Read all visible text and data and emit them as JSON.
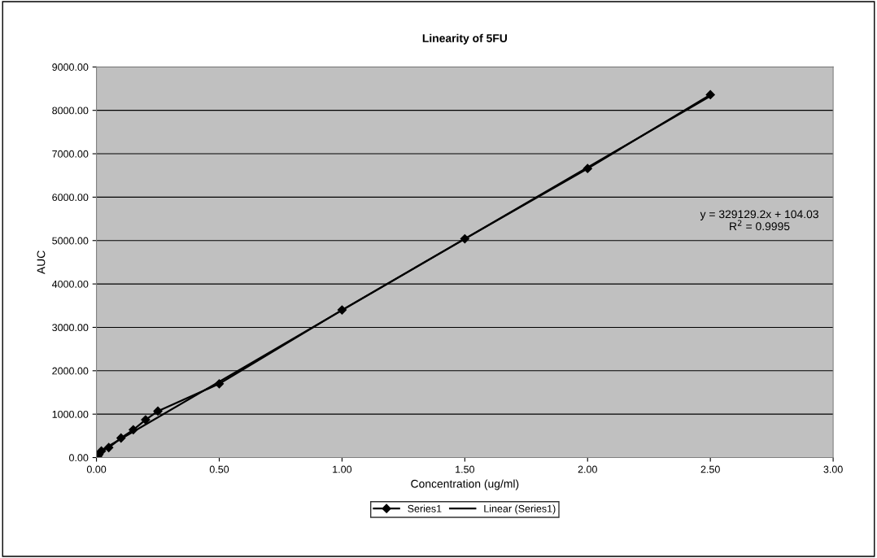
{
  "chart_data": {
    "type": "line",
    "title": "Linearity of 5FU",
    "xlabel": "Concentration (ug/ml)",
    "ylabel": "AUC",
    "series": [
      {
        "name": "Series1",
        "color": "#000000",
        "marker": "diamond",
        "x": [
          0.005,
          0.01,
          0.02,
          0.05,
          0.1,
          0.15,
          0.2,
          0.25,
          0.5,
          1.0,
          1.5,
          2.0,
          2.5
        ],
        "values": [
          30,
          70,
          150,
          230,
          450,
          640,
          870,
          1070,
          1700,
          3400,
          5040,
          6660,
          8360
        ]
      },
      {
        "name": "Linear (Series1)",
        "color": "#000000",
        "marker": "none",
        "x": [
          0.005,
          2.5
        ],
        "values": [
          120,
          8330
        ]
      }
    ],
    "xlim": [
      0,
      3
    ],
    "xticks": [
      {
        "value": 0,
        "label": "0.00"
      },
      {
        "value": 0.5,
        "label": "0.50"
      },
      {
        "value": 1,
        "label": "1.00"
      },
      {
        "value": 1.5,
        "label": "1.50"
      },
      {
        "value": 2,
        "label": "2.00"
      },
      {
        "value": 2.5,
        "label": "2.50"
      },
      {
        "value": 3,
        "label": "3.00"
      }
    ],
    "ylim": [
      0,
      9000
    ],
    "yticks": [
      {
        "value": 0,
        "label": "0.00"
      },
      {
        "value": 1000,
        "label": "1000.00"
      },
      {
        "value": 2000,
        "label": "2000.00"
      },
      {
        "value": 3000,
        "label": "3000.00"
      },
      {
        "value": 4000,
        "label": "4000.00"
      },
      {
        "value": 5000,
        "label": "5000.00"
      },
      {
        "value": 6000,
        "label": "6000.00"
      },
      {
        "value": 7000,
        "label": "7000.00"
      },
      {
        "value": 8000,
        "label": "8000.00"
      },
      {
        "value": 9000,
        "label": "9000.00"
      }
    ],
    "annotations": [
      "y = 329129.2x + 104.03\nR$^{2}$ = 0.9995"
    ],
    "grid": "y",
    "legend": "bottom"
  }
}
